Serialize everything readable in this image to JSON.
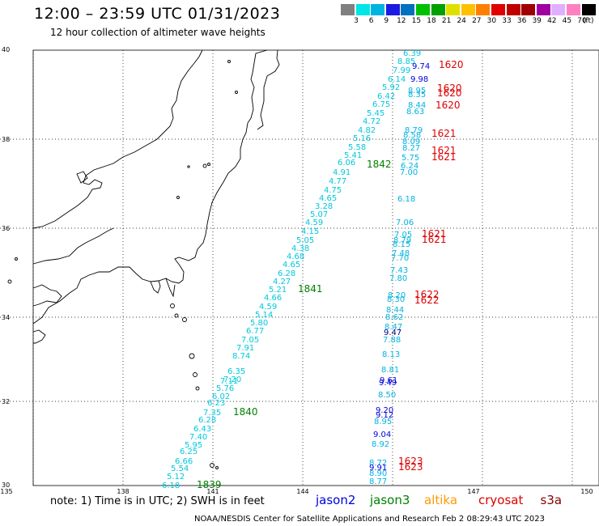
{
  "title": "12:00 – 23:59 UTC 01/31/2023",
  "subtitle": "12 hour collection of altimeter wave heights",
  "scale": {
    "colors": [
      "#808080",
      "#00e5e5",
      "#00b4e0",
      "#1a1ae0",
      "#0070c0",
      "#00c000",
      "#00a000",
      "#e0e000",
      "#ffc000",
      "#ff8000",
      "#e00000",
      "#c00000",
      "#a00000",
      "#a000a0",
      "#e0b0ff",
      "#ff80c0",
      "#000000"
    ],
    "labels": [
      "3",
      "6",
      "9",
      "12",
      "15",
      "18",
      "21",
      "24",
      "27",
      "30",
      "33",
      "36",
      "39",
      "42",
      "45",
      "70"
    ],
    "unit": "(ft)"
  },
  "lat_labels": [
    "40",
    "38",
    "36",
    "34",
    "32",
    "30"
  ],
  "lon_labels": [
    "135",
    "138",
    "141",
    "144",
    "147",
    "150"
  ],
  "note": "note:  1) Time is in UTC;  2) SWH is in feet",
  "satellites": [
    {
      "name": "jason2",
      "color": "#0000dd"
    },
    {
      "name": "jason3",
      "color": "#008000"
    },
    {
      "name": "altika",
      "color": "#ff9900"
    },
    {
      "name": "cryosat",
      "color": "#dd0000"
    },
    {
      "name": "s3a",
      "color": "#880000"
    }
  ],
  "footer": "NOAA/NESDIS Center for Satellite Applications and Research   Feb  2 08:29:43 UTC 2023",
  "time_labels": [
    {
      "text": "1620",
      "color": "#dd0000"
    },
    {
      "text": "1620",
      "color": "#dd0000"
    },
    {
      "text": "1620",
      "color": "#dd0000"
    },
    {
      "text": "1620",
      "color": "#dd0000"
    },
    {
      "text": "1621",
      "color": "#dd0000"
    },
    {
      "text": "1621",
      "color": "#dd0000"
    },
    {
      "text": "1621",
      "color": "#dd0000"
    },
    {
      "text": "1621",
      "color": "#dd0000"
    },
    {
      "text": "1621",
      "color": "#dd0000"
    },
    {
      "text": "1622",
      "color": "#dd0000"
    },
    {
      "text": "1622",
      "color": "#dd0000"
    },
    {
      "text": "1623",
      "color": "#dd0000"
    },
    {
      "text": "1623",
      "color": "#dd0000"
    },
    {
      "text": "1842",
      "color": "#008000"
    },
    {
      "text": "1841",
      "color": "#008000"
    },
    {
      "text": "1840",
      "color": "#008000"
    },
    {
      "text": "1839",
      "color": "#008000"
    }
  ],
  "track_jason3": [
    "6.39",
    "8.85",
    "7.99",
    "6.14",
    "5.92",
    "6.42",
    "6.75",
    "5.45",
    "4.72",
    "4.82",
    "5.16",
    "5.58",
    "5.41",
    "6.06",
    "4.91",
    "4.77",
    "4.75",
    "4.65",
    "3.28",
    "5.07",
    "4.59",
    "4.15",
    "5.05",
    "4.38",
    "4.68",
    "4.65",
    "6.28",
    "4.27",
    "5.21",
    "4.66",
    "4.59",
    "5.14",
    "5.80",
    "6.77",
    "7.05",
    "7.91",
    "8.74",
    "6.35",
    "7.20",
    "7.11",
    "5.76",
    "6.02",
    "6.23",
    "7.35",
    "6.28",
    "6.43",
    "7.40",
    "5.95",
    "6.25",
    "6.66",
    "5.54",
    "5.12",
    "6.18"
  ],
  "track_cryosat": [
    {
      "v": "9.74",
      "c": "#0000dd"
    },
    {
      "v": "9.98",
      "c": "#0000dd"
    },
    {
      "v": "8.95",
      "c": "#00b4e0"
    },
    {
      "v": "8.35",
      "c": "#00b4e0"
    },
    {
      "v": "8.44",
      "c": "#00b4e0"
    },
    {
      "v": "8.63",
      "c": "#00b4e0"
    },
    {
      "v": "8.79",
      "c": "#00b4e0"
    },
    {
      "v": "8.58",
      "c": "#00b4e0"
    },
    {
      "v": "8.09",
      "c": "#00b4e0"
    },
    {
      "v": "8.27",
      "c": "#00b4e0"
    },
    {
      "v": "5.75",
      "c": "#00b4e0"
    },
    {
      "v": "6.24",
      "c": "#00b4e0"
    },
    {
      "v": "7.00",
      "c": "#00b4e0"
    },
    {
      "v": "6.18",
      "c": "#00b4e0"
    },
    {
      "v": "7.06",
      "c": "#00b4e0"
    },
    {
      "v": "7.05",
      "c": "#00b4e0"
    },
    {
      "v": "8.79",
      "c": "#00b4e0"
    },
    {
      "v": "8.15",
      "c": "#00b4e0"
    },
    {
      "v": "7.48",
      "c": "#00b4e0"
    },
    {
      "v": "7.70",
      "c": "#00b4e0"
    },
    {
      "v": "7.43",
      "c": "#00b4e0"
    },
    {
      "v": "7.80",
      "c": "#00b4e0"
    },
    {
      "v": "8.20",
      "c": "#00b4e0"
    },
    {
      "v": "8.30",
      "c": "#00b4e0"
    },
    {
      "v": "8.44",
      "c": "#00b4e0"
    },
    {
      "v": "8.62",
      "c": "#00b4e0"
    },
    {
      "v": "8.47",
      "c": "#00b4e0"
    },
    {
      "v": "9.47",
      "c": "#000080"
    },
    {
      "v": "7.88",
      "c": "#00b4e0"
    },
    {
      "v": "8.13",
      "c": "#00b4e0"
    },
    {
      "v": "8.81",
      "c": "#00b4e0"
    },
    {
      "v": "9.61",
      "c": "#0000dd"
    },
    {
      "v": "9.49",
      "c": "#0000dd"
    },
    {
      "v": "8.50",
      "c": "#00b4e0"
    },
    {
      "v": "9.20",
      "c": "#0000dd"
    },
    {
      "v": "9.12",
      "c": "#0000dd"
    },
    {
      "v": "8.95",
      "c": "#00b4e0"
    },
    {
      "v": "9.04",
      "c": "#0000dd"
    },
    {
      "v": "8.92",
      "c": "#00b4e0"
    },
    {
      "v": "8.72",
      "c": "#00b4e0"
    },
    {
      "v": "9.91",
      "c": "#0000dd"
    },
    {
      "v": "8.90",
      "c": "#00b4e0"
    },
    {
      "v": "8.77",
      "c": "#00b4e0"
    }
  ]
}
